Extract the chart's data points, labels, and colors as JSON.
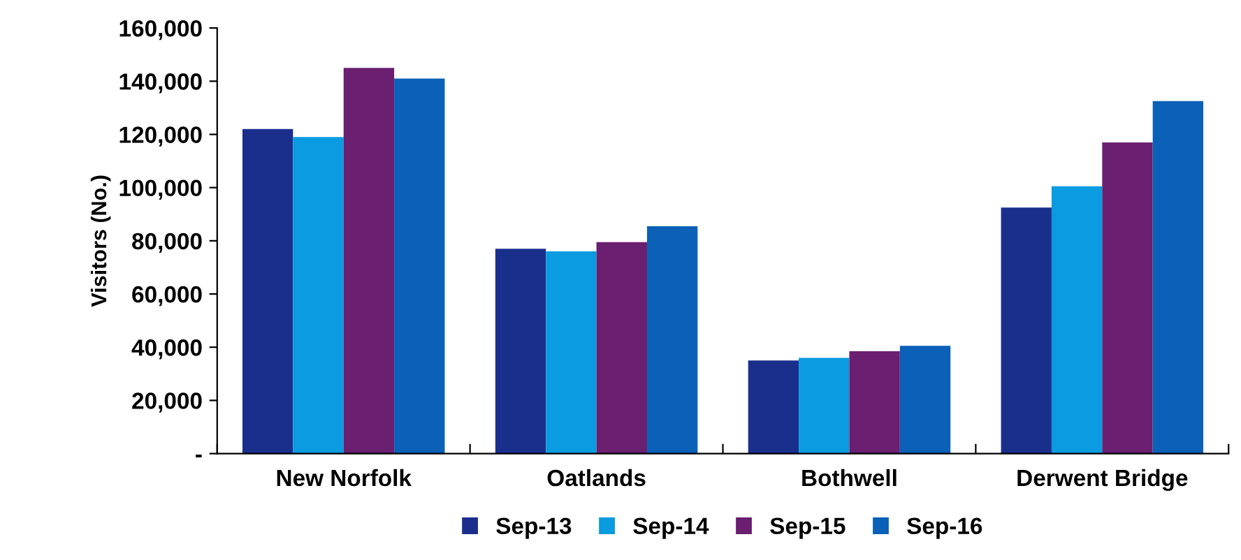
{
  "chart_data": {
    "type": "bar",
    "ylabel": "Visitors (No.)",
    "categories": [
      "New Norfolk",
      "Oatlands",
      "Bothwell",
      "Derwent Bridge"
    ],
    "series": [
      {
        "name": "Sep-13",
        "color": "#1a2f8c",
        "values": [
          122000,
          77000,
          35000,
          92500
        ]
      },
      {
        "name": "Sep-14",
        "color": "#0a9be0",
        "values": [
          119000,
          76000,
          36000,
          100500
        ]
      },
      {
        "name": "Sep-15",
        "color": "#6a1f70",
        "values": [
          145000,
          79500,
          38500,
          117000
        ]
      },
      {
        "name": "Sep-16",
        "color": "#0b60b8",
        "values": [
          141000,
          85500,
          40500,
          132500
        ]
      }
    ],
    "ylim": [
      0,
      160000
    ],
    "yticks": [
      {
        "value": 0,
        "label": "-"
      },
      {
        "value": 20000,
        "label": "20,000"
      },
      {
        "value": 40000,
        "label": "40,000"
      },
      {
        "value": 60000,
        "label": "60,000"
      },
      {
        "value": 80000,
        "label": "80,000"
      },
      {
        "value": 100000,
        "label": "100,000"
      },
      {
        "value": 120000,
        "label": "120,000"
      },
      {
        "value": 140000,
        "label": "140,000"
      },
      {
        "value": 160000,
        "label": "160,000"
      }
    ],
    "grid": false,
    "legend": "bottom"
  }
}
